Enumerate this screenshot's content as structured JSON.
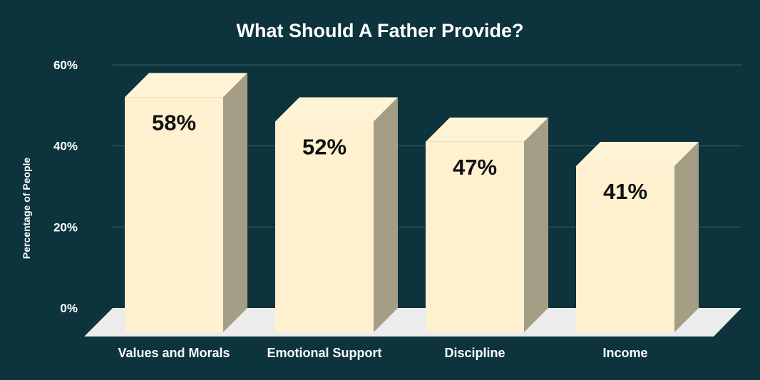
{
  "colors": {
    "background": "#0d333d",
    "bar_front": "#fff1cf",
    "bar_top": "#fff3d6",
    "bar_side": "#a59e87",
    "floor": "#ececec",
    "grid": "#3d6069",
    "text_light": "#ffffff",
    "text_dark": "#111111"
  },
  "chart_data": {
    "type": "bar",
    "title": "What Should A Father Provide?",
    "xlabel": "",
    "ylabel": "Percentage of People",
    "categories": [
      "Values and Morals",
      "Emotional Support",
      "Discipline",
      "Income"
    ],
    "values": [
      58,
      52,
      47,
      41
    ],
    "value_labels": [
      "58%",
      "52%",
      "47%",
      "41%"
    ],
    "ylim": [
      0,
      60
    ],
    "yticks": [
      0,
      20,
      40,
      60
    ],
    "ytick_labels": [
      "0%",
      "20%",
      "40%",
      "60%"
    ],
    "grid": true,
    "style": "3d-column",
    "legend": "none"
  }
}
